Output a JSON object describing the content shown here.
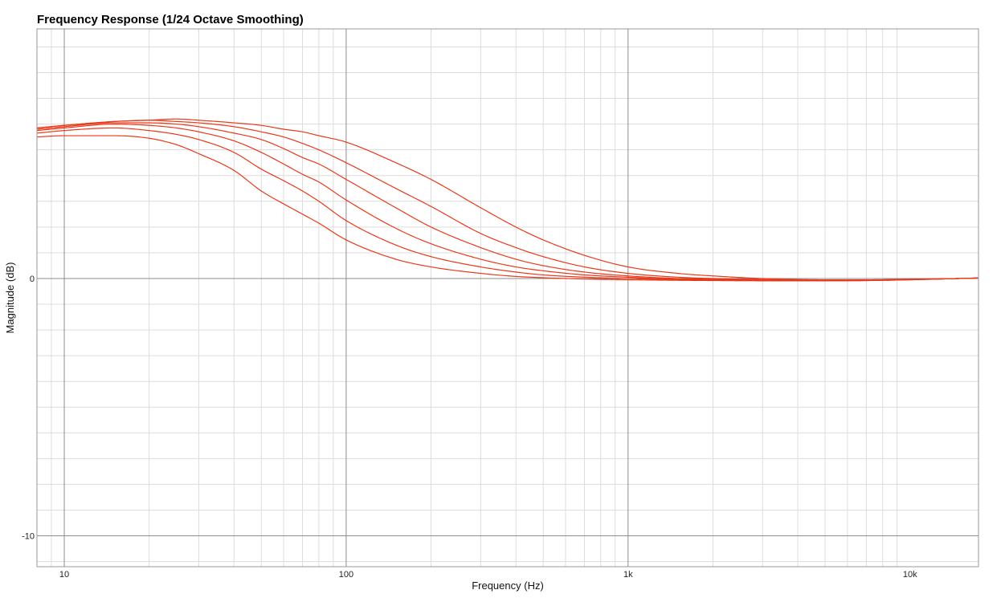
{
  "chart_data": {
    "type": "line",
    "title": "Frequency Response (1/24 Octave Smoothing)",
    "xlabel": "Frequency (Hz)",
    "ylabel": "Magnitude (dB)",
    "x_scale": "log",
    "xlim": [
      8,
      17500
    ],
    "ylim": [
      -11.2,
      9.7
    ],
    "x_ticks": [
      {
        "value": 10,
        "label": "10"
      },
      {
        "value": 100,
        "label": "100"
      },
      {
        "value": 1000,
        "label": "1k"
      },
      {
        "value": 10000,
        "label": "10k"
      }
    ],
    "y_ticks": [
      {
        "value": 0,
        "label": "0"
      },
      {
        "value": -10,
        "label": "-10"
      }
    ],
    "grid": true,
    "legend": "none",
    "line_color": "#e8391a",
    "x": [
      8,
      10,
      15,
      20,
      25,
      30,
      40,
      50,
      60,
      70,
      80,
      100,
      150,
      200,
      300,
      400,
      500,
      700,
      1000,
      1500,
      2000,
      3000,
      5000,
      7000,
      10000,
      15000,
      17500
    ],
    "series": [
      {
        "values": [
          5.5,
          5.55,
          5.55,
          5.45,
          5.2,
          4.85,
          4.2,
          3.4,
          2.9,
          2.5,
          2.15,
          1.5,
          0.75,
          0.45,
          0.2,
          0.08,
          0.03,
          -0.02,
          -0.05,
          -0.07,
          -0.08,
          -0.09,
          -0.09,
          -0.08,
          -0.05,
          0.0,
          0.02
        ]
      },
      {
        "values": [
          5.65,
          5.75,
          5.85,
          5.75,
          5.6,
          5.4,
          4.9,
          4.25,
          3.8,
          3.4,
          3.0,
          2.25,
          1.3,
          0.85,
          0.45,
          0.25,
          0.14,
          0.05,
          0.0,
          -0.05,
          -0.06,
          -0.08,
          -0.09,
          -0.08,
          -0.05,
          0.0,
          0.02
        ]
      },
      {
        "values": [
          5.75,
          5.85,
          6.0,
          5.95,
          5.85,
          5.7,
          5.35,
          4.9,
          4.45,
          4.05,
          3.75,
          3.05,
          1.95,
          1.35,
          0.75,
          0.45,
          0.3,
          0.14,
          0.05,
          -0.03,
          -0.05,
          -0.07,
          -0.08,
          -0.07,
          -0.04,
          0.0,
          0.02
        ]
      },
      {
        "values": [
          5.8,
          5.9,
          6.05,
          6.05,
          6.0,
          5.9,
          5.65,
          5.4,
          5.05,
          4.7,
          4.45,
          3.85,
          2.75,
          2.0,
          1.2,
          0.75,
          0.5,
          0.25,
          0.1,
          0.0,
          -0.03,
          -0.06,
          -0.08,
          -0.07,
          -0.04,
          0.0,
          0.02
        ]
      },
      {
        "values": [
          5.85,
          5.95,
          6.1,
          6.15,
          6.1,
          6.05,
          5.9,
          5.7,
          5.5,
          5.25,
          5.0,
          4.5,
          3.5,
          2.8,
          1.75,
          1.2,
          0.85,
          0.45,
          0.2,
          0.05,
          0.0,
          -0.04,
          -0.07,
          -0.06,
          -0.03,
          0.0,
          0.02
        ]
      },
      {
        "values": [
          5.85,
          5.95,
          6.1,
          6.15,
          6.2,
          6.15,
          6.05,
          5.95,
          5.8,
          5.7,
          5.55,
          5.3,
          4.5,
          3.85,
          2.75,
          2.0,
          1.5,
          0.9,
          0.45,
          0.2,
          0.1,
          0.0,
          -0.05,
          -0.05,
          -0.03,
          0.0,
          0.02
        ]
      }
    ]
  }
}
